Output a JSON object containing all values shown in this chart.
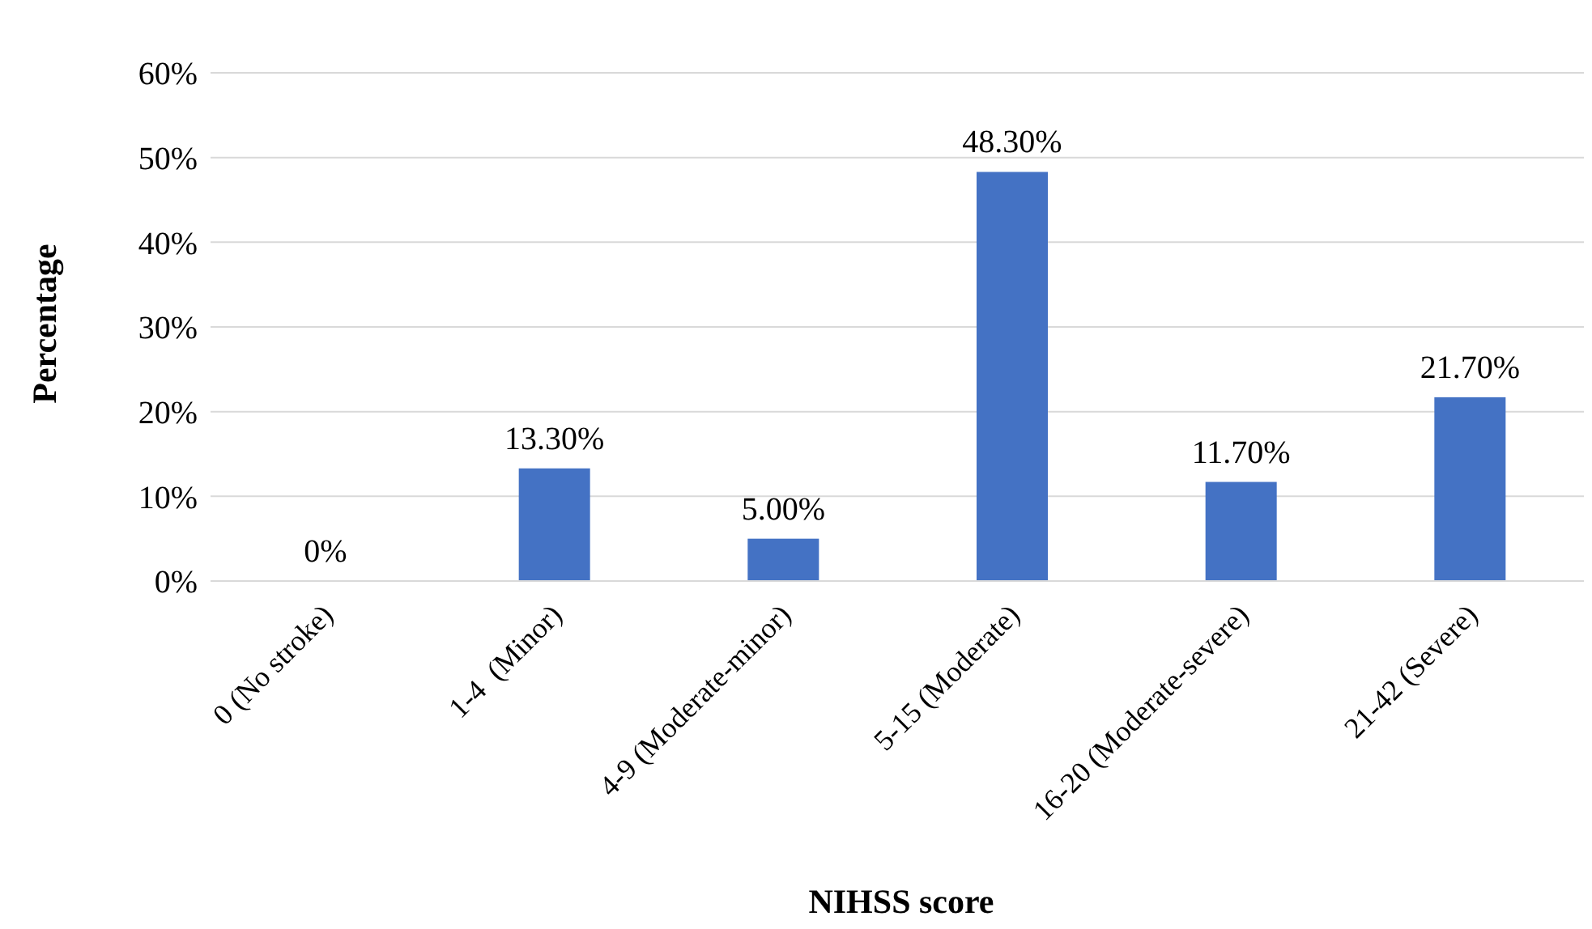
{
  "chart_data": {
    "type": "bar",
    "xlabel": "NIHSS score",
    "ylabel": "Percentage",
    "categories": [
      "0 (No stroke)",
      "1-4  (Minor)",
      "4-9 (Moderate-minor)",
      "5-15 (Moderate)",
      "16-20 (Moderate-severe)",
      "21-42 (Severe)"
    ],
    "values": [
      0,
      13.3,
      5,
      48.3,
      11.7,
      21.7
    ],
    "value_labels": [
      "0%",
      "13.30%",
      "5.00%",
      "48.30%",
      "11.70%",
      "21.70%"
    ],
    "color": "#4472c4",
    "ylim": [
      0,
      60
    ],
    "yticks": [
      {
        "value": 0,
        "label": "0%"
      },
      {
        "value": 10,
        "label": "10%"
      },
      {
        "value": 20,
        "label": "20%"
      },
      {
        "value": 30,
        "label": "30%"
      },
      {
        "value": 40,
        "label": "40%"
      },
      {
        "value": 50,
        "label": "50%"
      },
      {
        "value": 60,
        "label": "60%"
      }
    ],
    "grid": "y",
    "legend": false
  }
}
